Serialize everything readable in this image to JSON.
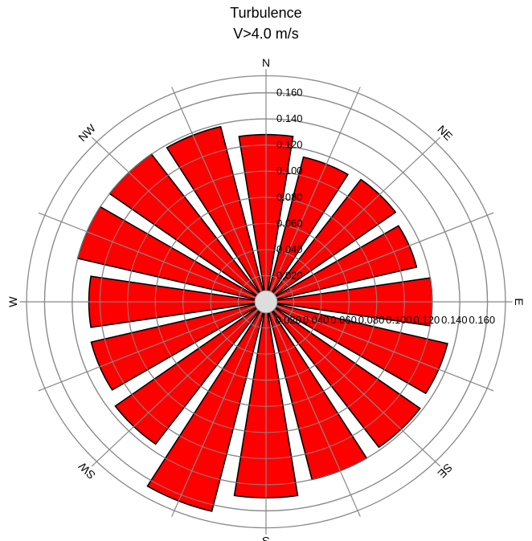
{
  "chart_data": {
    "type": "polar-bar",
    "title": "Turbulence",
    "subtitle": "V>4.0 m/s",
    "directions": [
      "N",
      "NNE",
      "NE",
      "ENE",
      "E",
      "ESE",
      "SE",
      "SSE",
      "S",
      "SSW",
      "SW",
      "WSW",
      "W",
      "WNW",
      "NW",
      "NNW"
    ],
    "values": [
      0.128,
      0.114,
      0.116,
      0.112,
      0.12,
      0.135,
      0.138,
      0.14,
      0.15,
      0.165,
      0.135,
      0.13,
      0.128,
      0.14,
      0.14,
      0.138
    ],
    "radial_ticks": [
      "0.020",
      "0.040",
      "0.060",
      "0.080",
      "0.100",
      "0.120",
      "0.140",
      "0.160"
    ],
    "r_max": 0.18,
    "compass_labels": [
      "N",
      "NE",
      "E",
      "SE",
      "S",
      "SW",
      "W",
      "NW"
    ],
    "bar_color": "#ff0000",
    "bar_edge_color": "#000000",
    "grid_color": "#888888"
  }
}
